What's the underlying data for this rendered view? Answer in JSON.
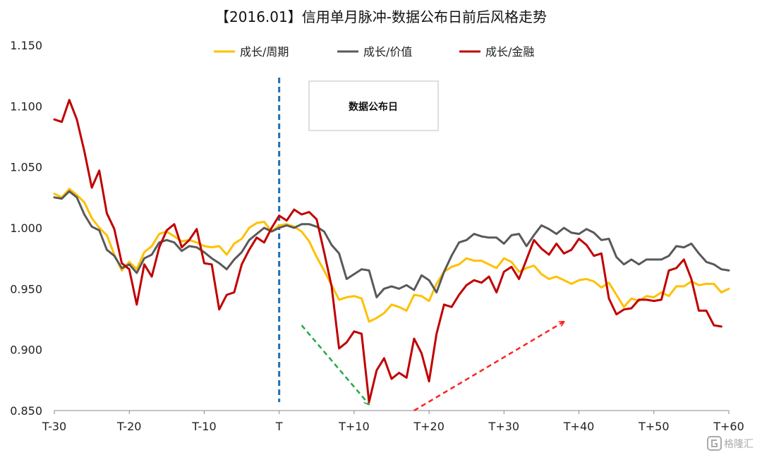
{
  "chart_data": {
    "type": "line",
    "title": "【2016.01】信用单月脉冲-数据公布日前后风格走势",
    "xlabel": "",
    "ylabel": "",
    "x_ticks": [
      "T-30",
      "T-20",
      "T-10",
      "T",
      "T+10",
      "T+20",
      "T+30",
      "T+40",
      "T+50",
      "T+60"
    ],
    "x_range": [
      -30,
      60
    ],
    "ylim": [
      0.85,
      1.15
    ],
    "y_ticks": [
      "0.850",
      "0.900",
      "0.950",
      "1.000",
      "1.050",
      "1.100",
      "1.150"
    ],
    "grid": false,
    "legend_position": "top",
    "series": [
      {
        "name": "成长/周期",
        "color": "#FFC000",
        "values": [
          1.028,
          1.025,
          1.032,
          1.027,
          1.021,
          1.008,
          1.0,
          0.994,
          0.978,
          0.965,
          0.972,
          0.966,
          0.98,
          0.985,
          0.995,
          0.997,
          0.993,
          0.989,
          0.99,
          0.988,
          0.985,
          0.984,
          0.985,
          0.978,
          0.987,
          0.991,
          1.0,
          1.004,
          1.005,
          0.997,
          1.002,
          1.003,
          1.001,
          0.997,
          0.989,
          0.976,
          0.965,
          0.953,
          0.941,
          0.943,
          0.944,
          0.942,
          0.923,
          0.926,
          0.93,
          0.937,
          0.935,
          0.932,
          0.945,
          0.944,
          0.94,
          0.954,
          0.964,
          0.968,
          0.97,
          0.975,
          0.973,
          0.973,
          0.97,
          0.967,
          0.975,
          0.972,
          0.964,
          0.967,
          0.969,
          0.962,
          0.958,
          0.96,
          0.957,
          0.954,
          0.957,
          0.958,
          0.956,
          0.951,
          0.955,
          0.945,
          0.935,
          0.942,
          0.94,
          0.944,
          0.943,
          0.947,
          0.944,
          0.952,
          0.952,
          0.956,
          0.953,
          0.954,
          0.954,
          0.947,
          0.95
        ]
      },
      {
        "name": "成长/价值",
        "color": "#595959",
        "values": [
          1.025,
          1.024,
          1.03,
          1.025,
          1.011,
          1.001,
          0.998,
          0.982,
          0.977,
          0.967,
          0.97,
          0.963,
          0.975,
          0.978,
          0.988,
          0.99,
          0.988,
          0.981,
          0.985,
          0.984,
          0.98,
          0.975,
          0.971,
          0.966,
          0.974,
          0.98,
          0.99,
          0.995,
          1.0,
          0.997,
          1.0,
          1.002,
          1.0,
          1.003,
          1.003,
          1.001,
          0.997,
          0.986,
          0.979,
          0.958,
          0.962,
          0.966,
          0.965,
          0.943,
          0.95,
          0.952,
          0.95,
          0.953,
          0.949,
          0.961,
          0.957,
          0.947,
          0.964,
          0.977,
          0.988,
          0.99,
          0.995,
          0.993,
          0.992,
          0.992,
          0.987,
          0.994,
          0.995,
          0.985,
          0.994,
          1.002,
          0.999,
          0.995,
          1.0,
          0.996,
          0.995,
          0.999,
          0.996,
          0.99,
          0.991,
          0.976,
          0.97,
          0.974,
          0.97,
          0.974,
          0.974,
          0.974,
          0.977,
          0.985,
          0.984,
          0.987,
          0.979,
          0.972,
          0.97,
          0.966,
          0.965
        ]
      },
      {
        "name": "成长/金融",
        "color": "#C00000",
        "values": [
          1.089,
          1.087,
          1.105,
          1.089,
          1.063,
          1.033,
          1.047,
          1.012,
          0.999,
          0.971,
          0.966,
          0.937,
          0.97,
          0.96,
          0.984,
          0.998,
          1.003,
          0.984,
          0.99,
          0.999,
          0.971,
          0.97,
          0.933,
          0.945,
          0.947,
          0.97,
          0.982,
          0.992,
          0.988,
          1.0,
          1.01,
          1.006,
          1.015,
          1.011,
          1.013,
          1.007,
          0.98,
          0.952,
          0.901,
          0.906,
          0.915,
          0.913,
          0.857,
          0.883,
          0.893,
          0.876,
          0.881,
          0.877,
          0.909,
          0.897,
          0.874,
          0.913,
          0.937,
          0.935,
          0.945,
          0.953,
          0.957,
          0.955,
          0.96,
          0.947,
          0.964,
          0.968,
          0.958,
          0.974,
          0.99,
          0.983,
          0.978,
          0.987,
          0.979,
          0.982,
          0.991,
          0.986,
          0.977,
          0.979,
          0.942,
          0.929,
          0.933,
          0.934,
          0.941,
          0.941,
          0.94,
          0.941,
          0.965,
          0.967,
          0.974,
          0.958,
          0.932,
          0.932,
          0.92,
          0.919
        ]
      }
    ],
    "annotations": [
      {
        "text": "数据公布日",
        "type": "box"
      },
      {
        "type": "vertical-dashed-line",
        "x": 0,
        "color": "#1F6FB5"
      },
      {
        "type": "dashed-arrow",
        "color": "#22AA44",
        "from": [
          3,
          0.92
        ],
        "to": [
          12,
          0.855
        ]
      },
      {
        "type": "dashed-arrow",
        "color": "#FF2222",
        "from": [
          18,
          0.85
        ],
        "to": [
          38,
          0.923
        ]
      }
    ]
  },
  "watermark": {
    "text": "格隆汇",
    "icon": "glh-logo-icon"
  }
}
